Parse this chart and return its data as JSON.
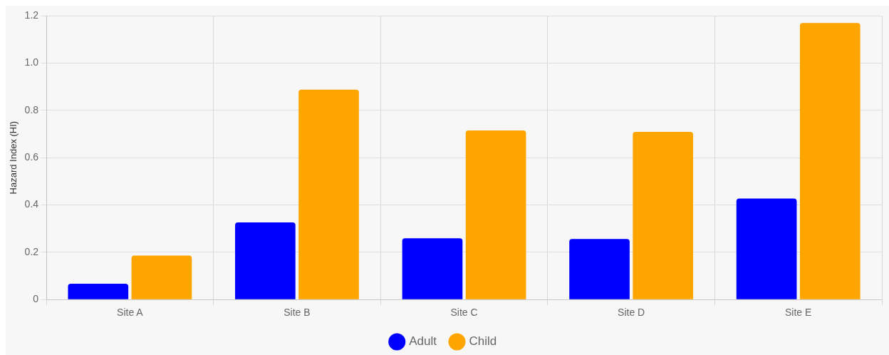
{
  "chart_data": {
    "type": "bar",
    "ylabel": "Hazard Index (HI)",
    "categories": [
      "Site A",
      "Site B",
      "Site C",
      "Site D",
      "Site E"
    ],
    "series": [
      {
        "name": "Adult",
        "color": "#0000ff",
        "values": [
          0.067,
          0.326,
          0.259,
          0.256,
          0.427
        ]
      },
      {
        "name": "Child",
        "color": "#ffa500",
        "values": [
          0.186,
          0.887,
          0.715,
          0.709,
          1.169
        ]
      }
    ],
    "ylim": [
      0,
      1.2
    ],
    "yticks": [
      0,
      0.2,
      0.4,
      0.6,
      0.8,
      {
        "value": 1,
        "label": "1.0"
      },
      1.2
    ],
    "grid": true,
    "legend": "bottom"
  }
}
